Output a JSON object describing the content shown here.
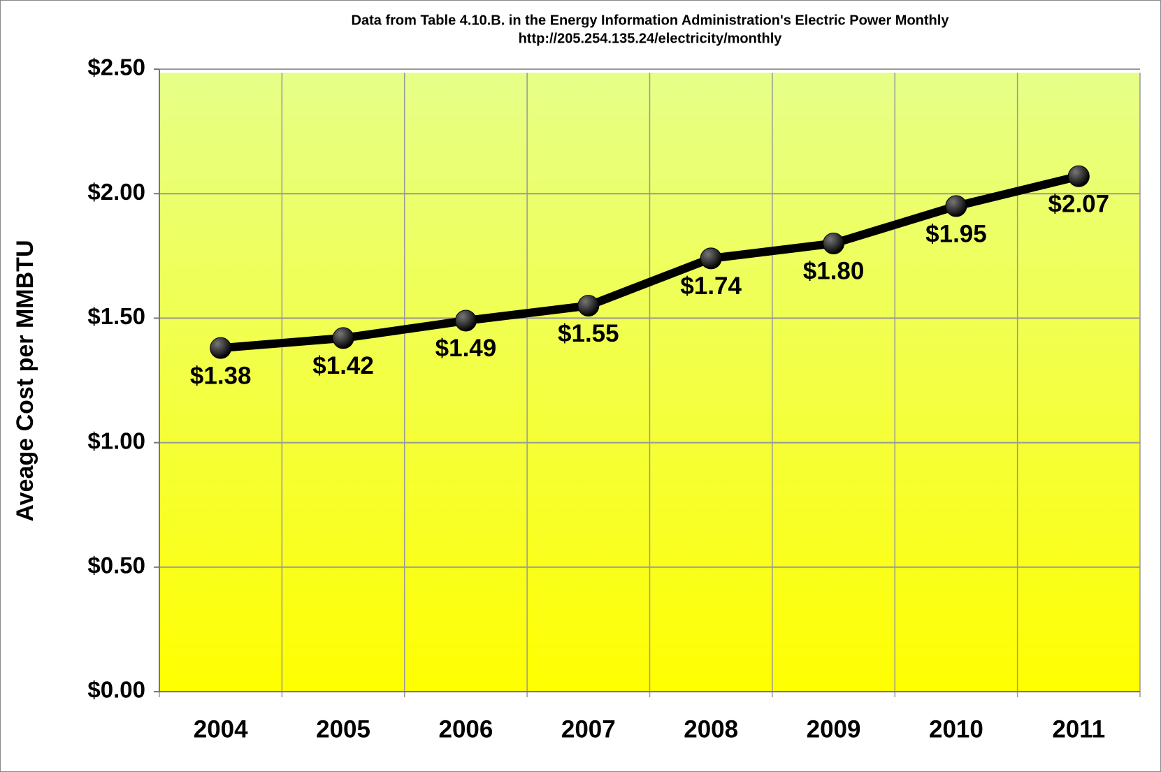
{
  "chart_data": {
    "type": "line",
    "title": "Data from Table 4.10.B. in the Energy Information Administration's Electric Power Monthly",
    "subtitle": "http://205.254.135.24/electricity/monthly",
    "y_label": "Aveage Cost per MMBTU",
    "categories": [
      "2004",
      "2005",
      "2006",
      "2007",
      "2008",
      "2009",
      "2010",
      "2011"
    ],
    "values": [
      1.38,
      1.42,
      1.49,
      1.55,
      1.74,
      1.8,
      1.95,
      2.07
    ],
    "value_labels": [
      "$1.38",
      "$1.42",
      "$1.49",
      "$1.55",
      "$1.74",
      "$1.80",
      "$1.95",
      "$2.07"
    ],
    "color": "#000000",
    "ylim": [
      0,
      2.5
    ],
    "yticks": [
      {
        "value": 0,
        "label": "$0.00"
      },
      {
        "value": 0.5,
        "label": "$0.50"
      },
      {
        "value": 1,
        "label": "$1.00"
      },
      {
        "value": 1.5,
        "label": "$1.50"
      },
      {
        "value": 2,
        "label": "$2.00"
      },
      {
        "value": 2.5,
        "label": "$2.50"
      }
    ],
    "grid": true
  }
}
